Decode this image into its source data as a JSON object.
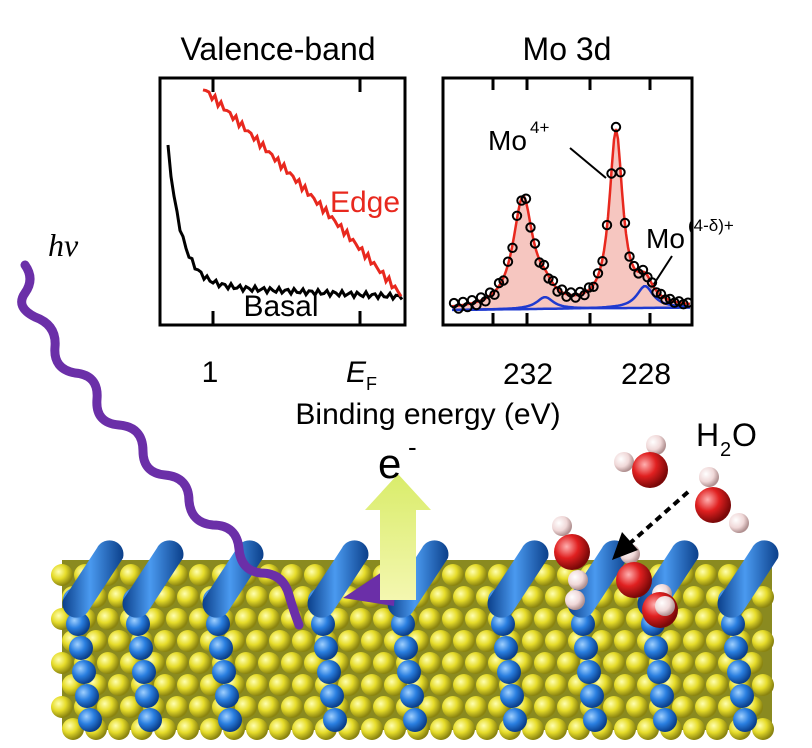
{
  "panels": [
    {
      "title": "Valence-band",
      "curve_labels": [
        "Edge",
        "Basal"
      ],
      "tick_labels": [
        "1",
        "E",
        "F"
      ]
    },
    {
      "title": "Mo 3d",
      "tick_labels": [
        "232",
        "228"
      ],
      "peak_labels": [
        {
          "base": "Mo",
          "sup": "4+"
        },
        {
          "base": "Mo",
          "sup": "(4-δ)+"
        }
      ]
    }
  ],
  "x_axis_label": "Binding energy (eV)",
  "scene": {
    "photon": "hv",
    "electron": "e",
    "electron_charge": "-",
    "water": [
      "H",
      "2",
      "O"
    ]
  }
}
